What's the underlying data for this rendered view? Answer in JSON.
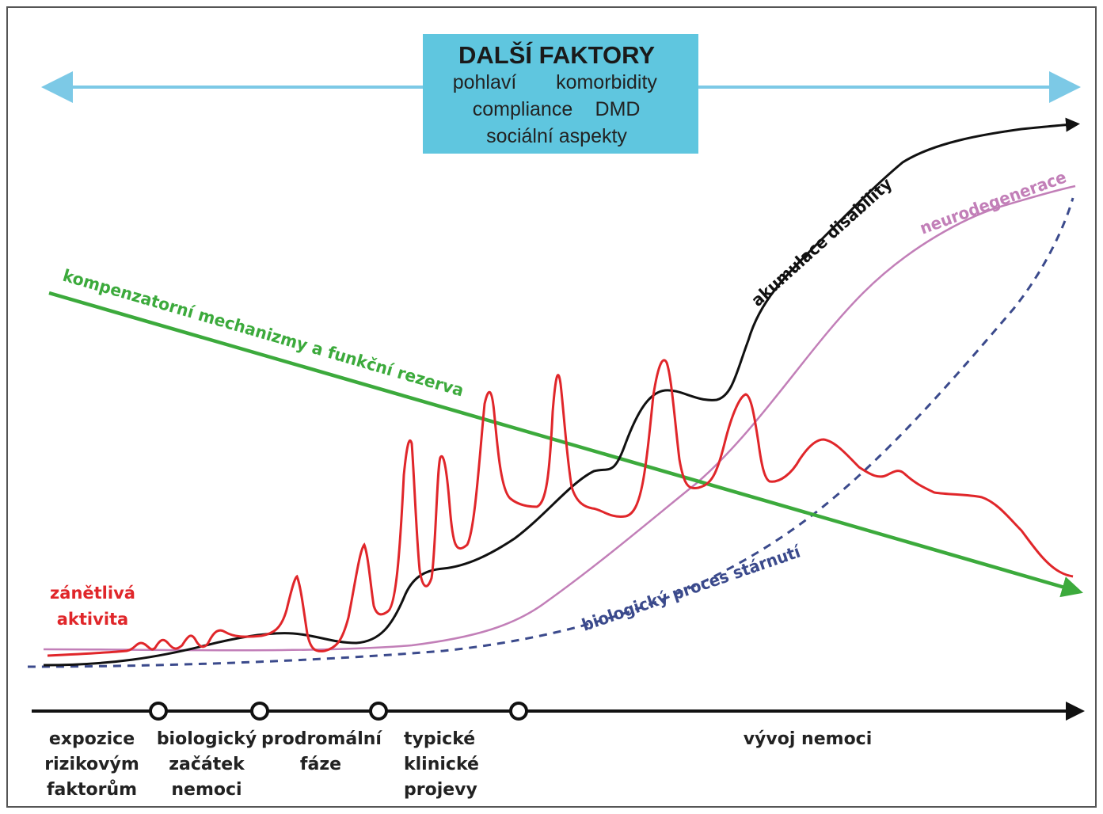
{
  "factors_box": {
    "title": "DALŠÍ FAKTORY",
    "items": [
      "pohlaví",
      "komorbidity",
      "compliance",
      "DMD",
      "sociální aspekty"
    ],
    "fill_color": "#5fc6df",
    "arrow_color": "#7cc9e6"
  },
  "curve_labels": {
    "compensation": "kompenzatorní mechanizmy a funkční rezerva",
    "disability": "akumulace disability",
    "neurodegeneration": "neurodegenerace",
    "aging": "biologický proces stárnutí",
    "inflammation_line1": "zánětlivá",
    "inflammation_line2": "aktivita"
  },
  "colors": {
    "compensation": "#3caa3c",
    "disability": "#111111",
    "neurodegeneration": "#c27fb8",
    "aging": "#3b4a8c",
    "inflammation": "#e0262a",
    "timeline": "#111111"
  },
  "timeline": {
    "stages": [
      {
        "lines": [
          "expozice",
          "rizikovým",
          "faktorům"
        ]
      },
      {
        "lines": [
          "biologický",
          "začátek",
          "nemoci"
        ]
      },
      {
        "lines": [
          "prodromální",
          "fáze"
        ]
      },
      {
        "lines": [
          "typické",
          "klinické",
          "projevy"
        ]
      },
      {
        "lines": [
          "vývoj nemoci"
        ]
      }
    ]
  }
}
